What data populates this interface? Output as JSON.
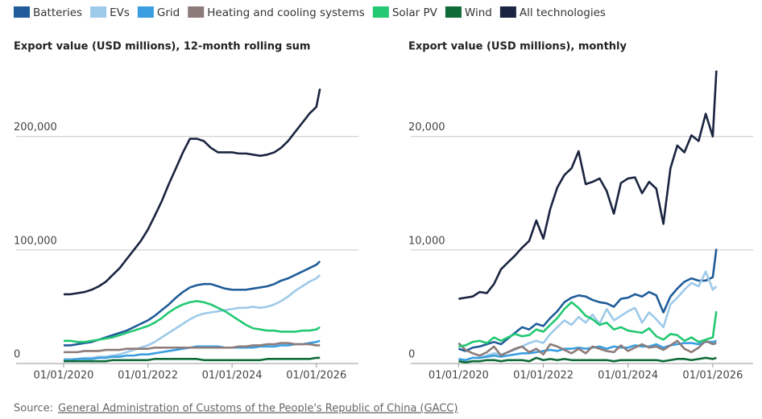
{
  "chart_data": [
    {
      "type": "line",
      "title": "Export value (USD millions), 12-month rolling sum",
      "x": [
        "2020-01-01",
        "2020-03-01",
        "2020-05-01",
        "2020-07-01",
        "2020-09-01",
        "2020-11-01",
        "2021-01-01",
        "2021-03-01",
        "2021-05-01",
        "2021-07-01",
        "2021-09-01",
        "2021-11-01",
        "2022-01-01",
        "2022-03-01",
        "2022-05-01",
        "2022-07-01",
        "2022-09-01",
        "2022-11-01",
        "2023-01-01",
        "2023-03-01",
        "2023-05-01",
        "2023-07-01",
        "2023-09-01",
        "2023-11-01",
        "2024-01-01",
        "2024-03-01",
        "2024-05-01",
        "2024-07-01",
        "2024-09-01",
        "2024-11-01",
        "2025-01-01",
        "2025-03-01",
        "2025-05-01",
        "2025-07-01",
        "2025-09-01",
        "2025-11-01",
        "2026-01-01",
        "2026-02-01"
      ],
      "xlim": [
        "2018-11-15",
        "2027-01-01"
      ],
      "xticks": [
        {
          "value": "2020-01-01",
          "label": "01/01/2020"
        },
        {
          "value": "2022-01-01",
          "label": "01/01/2022"
        },
        {
          "value": "2024-01-01",
          "label": "01/01/2024"
        },
        {
          "value": "2026-01-01",
          "label": "01/01/2026"
        }
      ],
      "ylim": [
        0,
        260000
      ],
      "yticks": [
        0,
        {
          "value": 100000,
          "label": "100,000"
        },
        {
          "value": 200000,
          "label": "200,000"
        }
      ],
      "grid": true,
      "series": [
        {
          "name": "Batteries",
          "color": "#1f5c99",
          "values": [
            16000,
            16000,
            17000,
            18000,
            19000,
            21000,
            23000,
            25000,
            27000,
            29000,
            32000,
            35000,
            38000,
            42000,
            47000,
            52000,
            58000,
            63000,
            67000,
            69000,
            70000,
            70000,
            68000,
            66000,
            65000,
            65000,
            65000,
            66000,
            67000,
            68000,
            70000,
            73000,
            75000,
            78000,
            81000,
            84000,
            87000,
            90000
          ]
        },
        {
          "name": "EVs",
          "color": "#9ecae9",
          "values": [
            4000,
            4000,
            4000,
            5000,
            5000,
            6000,
            6000,
            7000,
            8000,
            10000,
            12000,
            14000,
            16000,
            19000,
            23000,
            27000,
            31000,
            35000,
            39000,
            42000,
            44000,
            45000,
            46000,
            47000,
            48000,
            49000,
            49000,
            50000,
            49000,
            50000,
            52000,
            55000,
            59000,
            64000,
            68000,
            72000,
            75000,
            78000
          ]
        },
        {
          "name": "Grid",
          "color": "#3a9ee0",
          "values": [
            3000,
            3000,
            4000,
            4000,
            4000,
            5000,
            5000,
            6000,
            6000,
            7000,
            7000,
            8000,
            8000,
            9000,
            10000,
            11000,
            12000,
            13000,
            14000,
            15000,
            15000,
            15000,
            15000,
            14000,
            14000,
            14000,
            14000,
            14000,
            15000,
            15000,
            15000,
            16000,
            16000,
            17000,
            17000,
            18000,
            19000,
            20000
          ]
        },
        {
          "name": "Heating and cooling systems",
          "color": "#8c7b79",
          "values": [
            10000,
            10000,
            10000,
            11000,
            11000,
            11000,
            12000,
            12000,
            12000,
            13000,
            13000,
            13000,
            13000,
            14000,
            14000,
            14000,
            14000,
            14000,
            14000,
            14000,
            14000,
            14000,
            14000,
            14000,
            14000,
            15000,
            15000,
            16000,
            16000,
            17000,
            17000,
            18000,
            18000,
            17000,
            17000,
            17000,
            16000,
            16000
          ]
        },
        {
          "name": "Solar PV",
          "color": "#22c872",
          "values": [
            20000,
            20000,
            19000,
            19000,
            20000,
            21000,
            22000,
            23000,
            25000,
            27000,
            29000,
            31000,
            33000,
            36000,
            40000,
            45000,
            49000,
            52000,
            54000,
            55000,
            54000,
            52000,
            49000,
            46000,
            42000,
            38000,
            34000,
            31000,
            30000,
            29000,
            29000,
            28000,
            28000,
            28000,
            29000,
            29000,
            30000,
            32000
          ]
        },
        {
          "name": "Wind",
          "color": "#0f6b38",
          "values": [
            2000,
            2000,
            2000,
            2000,
            2000,
            2000,
            2000,
            3000,
            3000,
            3000,
            3000,
            3000,
            3000,
            4000,
            4000,
            4000,
            4000,
            4000,
            4000,
            4000,
            3000,
            3000,
            3000,
            3000,
            3000,
            3000,
            3000,
            3000,
            3000,
            4000,
            4000,
            4000,
            4000,
            4000,
            4000,
            4000,
            5000,
            5000
          ]
        },
        {
          "name": "All technologies",
          "color": "#1a2440",
          "values": [
            61000,
            61000,
            62000,
            63000,
            65000,
            68000,
            72000,
            78000,
            84000,
            92000,
            100000,
            108000,
            118000,
            130000,
            143000,
            158000,
            172000,
            186000,
            198000,
            198000,
            196000,
            190000,
            186000,
            186000,
            186000,
            185000,
            185000,
            184000,
            183000,
            184000,
            186000,
            190000,
            196000,
            204000,
            212000,
            220000,
            226000,
            242000
          ]
        }
      ]
    },
    {
      "type": "line",
      "title": "Export value (USD millions), monthly",
      "x": [
        "2020-01-01",
        "2020-03-01",
        "2020-05-01",
        "2020-07-01",
        "2020-09-01",
        "2020-11-01",
        "2021-01-01",
        "2021-03-01",
        "2021-05-01",
        "2021-07-01",
        "2021-09-01",
        "2021-11-01",
        "2022-01-01",
        "2022-03-01",
        "2022-05-01",
        "2022-07-01",
        "2022-09-01",
        "2022-11-01",
        "2023-01-01",
        "2023-03-01",
        "2023-05-01",
        "2023-07-01",
        "2023-09-01",
        "2023-11-01",
        "2024-01-01",
        "2024-03-01",
        "2024-05-01",
        "2024-07-01",
        "2024-09-01",
        "2024-11-01",
        "2025-01-01",
        "2025-03-01",
        "2025-05-01",
        "2025-07-01",
        "2025-09-01",
        "2025-11-01",
        "2026-01-01",
        "2026-02-01"
      ],
      "xlim": [
        "2018-11-15",
        "2026-12-15"
      ],
      "xticks": [
        {
          "value": "2020-01-01",
          "label": "01/01/2020"
        },
        {
          "value": "2022-01-01",
          "label": "01/01/2022"
        },
        {
          "value": "2024-01-01",
          "label": "01/01/2024"
        },
        {
          "value": "2026-01-01",
          "label": "01/01/2026"
        }
      ],
      "ylim": [
        0,
        26000
      ],
      "yticks": [
        0,
        {
          "value": 10000,
          "label": "10,000"
        },
        {
          "value": 20000,
          "label": "20,000"
        }
      ],
      "grid": true,
      "series": [
        {
          "name": "Batteries",
          "color": "#1f5c99",
          "values": [
            1300,
            1100,
            1400,
            1500,
            1700,
            1900,
            1700,
            2200,
            2700,
            3200,
            3000,
            3500,
            3300,
            4000,
            4600,
            5400,
            5800,
            6000,
            5900,
            5600,
            5400,
            5300,
            5000,
            5700,
            5800,
            6100,
            5900,
            6300,
            6000,
            4500,
            5900,
            6600,
            7200,
            7500,
            7300,
            7300,
            7600,
            10100
          ]
        },
        {
          "name": "EVs",
          "color": "#9ecae9",
          "values": [
            400,
            300,
            500,
            500,
            700,
            900,
            800,
            1000,
            1200,
            1500,
            1800,
            2000,
            1800,
            2600,
            3200,
            3800,
            3400,
            4100,
            3600,
            4300,
            3500,
            4800,
            3800,
            4200,
            4600,
            4900,
            3600,
            4500,
            3900,
            3200,
            5200,
            5800,
            6500,
            7100,
            6800,
            8100,
            6500,
            6800
          ]
        },
        {
          "name": "Grid",
          "color": "#3a9ee0",
          "values": [
            400,
            300,
            500,
            500,
            600,
            700,
            600,
            700,
            800,
            900,
            900,
            1000,
            1100,
            1200,
            1100,
            1300,
            1300,
            1400,
            1300,
            1400,
            1500,
            1300,
            1500,
            1400,
            1400,
            1600,
            1500,
            1500,
            1700,
            1400,
            1600,
            1700,
            1800,
            1800,
            1700,
            1900,
            1900,
            2000
          ]
        },
        {
          "name": "Heating and cooling systems",
          "color": "#8c7b79",
          "values": [
            1800,
            1200,
            900,
            700,
            1000,
            1500,
            700,
            1000,
            1300,
            1500,
            1000,
            1300,
            800,
            1700,
            1500,
            1200,
            900,
            1300,
            900,
            1500,
            1300,
            1100,
            1000,
            1600,
            1100,
            1400,
            1700,
            1400,
            1500,
            1200,
            1600,
            2000,
            1300,
            1000,
            1400,
            2000,
            1700,
            1800
          ]
        },
        {
          "name": "Solar PV",
          "color": "#22c872",
          "values": [
            1500,
            1600,
            1900,
            2000,
            1800,
            2300,
            2000,
            2300,
            2600,
            2400,
            2500,
            3000,
            2800,
            3400,
            4000,
            4800,
            5400,
            4900,
            4200,
            3900,
            3400,
            3600,
            3000,
            3200,
            2900,
            2800,
            2700,
            3100,
            2400,
            2100,
            2600,
            2500,
            2000,
            2300,
            1900,
            2100,
            2300,
            4600
          ]
        },
        {
          "name": "Wind",
          "color": "#0f6b38",
          "values": [
            200,
            100,
            200,
            200,
            300,
            300,
            200,
            300,
            300,
            300,
            200,
            500,
            300,
            400,
            300,
            400,
            300,
            300,
            300,
            300,
            300,
            300,
            200,
            300,
            300,
            300,
            300,
            300,
            300,
            200,
            300,
            400,
            400,
            300,
            400,
            500,
            400,
            500
          ]
        },
        {
          "name": "All technologies",
          "color": "#1a2440",
          "values": [
            5700,
            5800,
            5900,
            6300,
            6200,
            7000,
            8300,
            8900,
            9500,
            10200,
            10800,
            12600,
            11000,
            13600,
            15500,
            16600,
            17200,
            18700,
            15800,
            16000,
            16300,
            15200,
            13200,
            15900,
            16300,
            16400,
            15000,
            16000,
            15400,
            12300,
            17200,
            19200,
            18600,
            20100,
            19600,
            22000,
            20000,
            25800
          ]
        }
      ]
    }
  ],
  "source": {
    "prefix": "Source:",
    "link": "General Administration of Customs of the People's Republic of China (GACC)"
  }
}
